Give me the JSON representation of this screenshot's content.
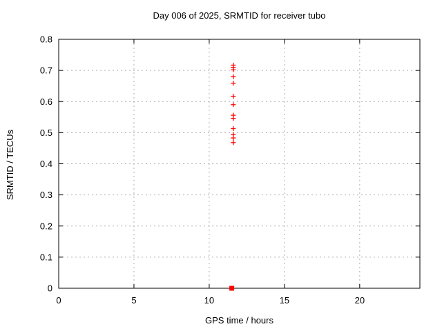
{
  "title": "Day 006 of 2025, SRMTID for receiver tubo",
  "colors": {
    "marker": "#ff0000",
    "grid": "#b0b0b0",
    "axis": "#000000",
    "background": "#ffffff"
  },
  "chart_data": {
    "type": "scatter",
    "title": "Day 006 of 2025, SRMTID for receiver tubo",
    "xlabel": "GPS time / hours",
    "ylabel": "SRMTID / TECUs",
    "xlim": [
      0,
      24
    ],
    "ylim": [
      0,
      0.8
    ],
    "xticks": [
      0,
      5,
      10,
      15,
      20
    ],
    "xtick_labels": [
      "0",
      "5",
      "10",
      "15",
      "20"
    ],
    "yticks": [
      0,
      0.1,
      0.2,
      0.3,
      0.4,
      0.5,
      0.6,
      0.7,
      0.8
    ],
    "ytick_labels": [
      "0",
      "0.1",
      "0.2",
      "0.3",
      "0.4",
      "0.5",
      "0.6",
      "0.7",
      "0.8"
    ],
    "grid": true,
    "legend": false,
    "series": [
      {
        "name": "srmtid-points",
        "marker": "plus",
        "color": "#ff0000",
        "points": [
          {
            "x": 11.6,
            "y": 0.717
          },
          {
            "x": 11.6,
            "y": 0.71
          },
          {
            "x": 11.6,
            "y": 0.702
          },
          {
            "x": 11.6,
            "y": 0.68
          },
          {
            "x": 11.6,
            "y": 0.659
          },
          {
            "x": 11.6,
            "y": 0.617
          },
          {
            "x": 11.6,
            "y": 0.59
          },
          {
            "x": 11.6,
            "y": 0.556
          },
          {
            "x": 11.6,
            "y": 0.546
          },
          {
            "x": 11.6,
            "y": 0.513
          },
          {
            "x": 11.6,
            "y": 0.494
          },
          {
            "x": 11.6,
            "y": 0.483
          },
          {
            "x": 11.6,
            "y": 0.468
          }
        ]
      },
      {
        "name": "srmtid-zero-point",
        "marker": "filled-square",
        "color": "#ff0000",
        "points": [
          {
            "x": 11.5,
            "y": 0.0
          }
        ]
      }
    ]
  }
}
